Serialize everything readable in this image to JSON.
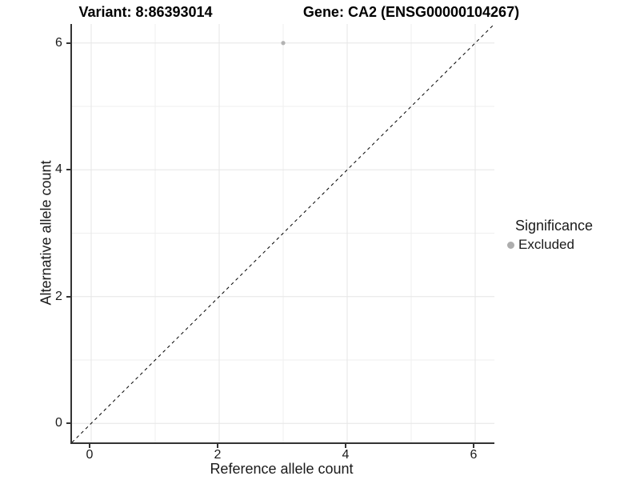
{
  "titles": {
    "variant": "Variant: 8:86393014",
    "gene": "Gene: CA2 (ENSG00000104267)"
  },
  "chart_data": {
    "type": "scatter",
    "xlabel": "Reference allele count",
    "ylabel": "Alternative allele count",
    "xlim": [
      -0.3,
      6.3
    ],
    "ylim": [
      -0.3,
      6.3
    ],
    "xticks": [
      0,
      2,
      4,
      6
    ],
    "yticks": [
      0,
      2,
      4,
      6
    ],
    "minor_gridlines_x": [
      1,
      3,
      5
    ],
    "minor_gridlines_y": [
      1,
      3,
      5
    ],
    "grid": true,
    "points": [
      {
        "x": 3,
        "y": 6,
        "series": "Excluded"
      }
    ],
    "point_radius": 2.6,
    "abline": {
      "slope": 1,
      "intercept": 0,
      "style": "dashed",
      "color": "#000000",
      "dash": "4,4"
    },
    "legend": {
      "title": "Significance",
      "position": "right",
      "items": [
        {
          "label": "Excluded",
          "color": "#adadad"
        }
      ]
    },
    "colors": {
      "point": "#b3b3b3",
      "grid_major": "#e6e6e6",
      "grid_minor": "#efefef",
      "axis_line": "#333333",
      "text": "#1a1a1a",
      "background": "#ffffff"
    }
  }
}
